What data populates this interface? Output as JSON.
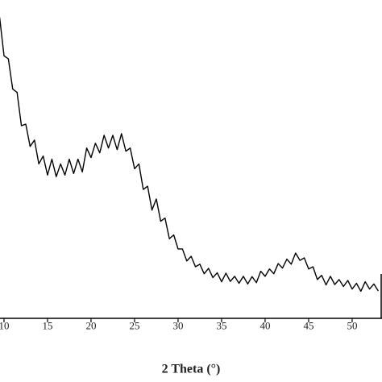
{
  "chart_data": {
    "type": "line",
    "x_label": "2 Theta (°)",
    "xlim": [
      9.54,
      53.43
    ],
    "ylim": [
      0,
      100
    ],
    "xticks": [
      10,
      15,
      20,
      25,
      30,
      35,
      40,
      45,
      50
    ],
    "x": [
      9.5,
      10,
      10.5,
      11,
      11.5,
      12,
      12.5,
      13,
      13.5,
      14,
      14.5,
      15,
      15.5,
      16,
      16.5,
      17,
      17.5,
      18,
      18.5,
      19,
      19.5,
      20,
      20.5,
      21,
      21.5,
      22,
      22.5,
      23,
      23.5,
      24,
      24.5,
      25,
      25.5,
      26,
      26.5,
      27,
      27.5,
      28,
      28.5,
      29,
      29.5,
      30,
      30.5,
      31,
      31.5,
      32,
      32.5,
      33,
      33.5,
      34,
      34.5,
      35,
      35.5,
      36,
      36.5,
      37,
      37.5,
      38,
      38.5,
      39,
      39.5,
      40,
      40.5,
      41,
      41.5,
      42,
      42.5,
      43,
      43.5,
      44,
      44.5,
      45,
      45.5,
      46,
      46.5,
      47,
      47.5,
      48,
      48.5,
      49,
      49.5,
      50,
      50.5,
      51,
      51.5,
      52,
      52.5,
      53
    ],
    "series": [
      {
        "color": "#000000",
        "values": [
          94.5,
          82.5,
          81.5,
          72,
          71,
          60.5,
          61,
          54,
          56,
          48.5,
          51,
          45,
          50,
          44.5,
          48.5,
          45,
          50,
          45.5,
          50,
          46,
          53.5,
          50.5,
          55,
          52,
          57.5,
          53.5,
          57.5,
          53,
          58,
          52.5,
          53.5,
          47,
          48.5,
          40.5,
          41.5,
          34,
          37.5,
          30.5,
          31.5,
          25,
          26.2,
          21.8,
          21.8,
          18,
          19.5,
          16.2,
          17,
          14,
          15.7,
          12.8,
          14.3,
          11.5,
          14.2,
          11.6,
          13.2,
          11,
          13.2,
          10.8,
          13.1,
          11.2,
          14.8,
          13.2,
          15.5,
          14,
          17.2,
          15.8,
          18.6,
          17,
          20.5,
          18.2,
          19,
          15.5,
          16.2,
          12.2,
          13.5,
          10.5,
          13.2,
          10.6,
          12.2,
          10,
          11.9,
          9.2,
          11,
          8.5,
          11.5,
          9.2,
          10.8,
          8.6
        ]
      }
    ]
  }
}
